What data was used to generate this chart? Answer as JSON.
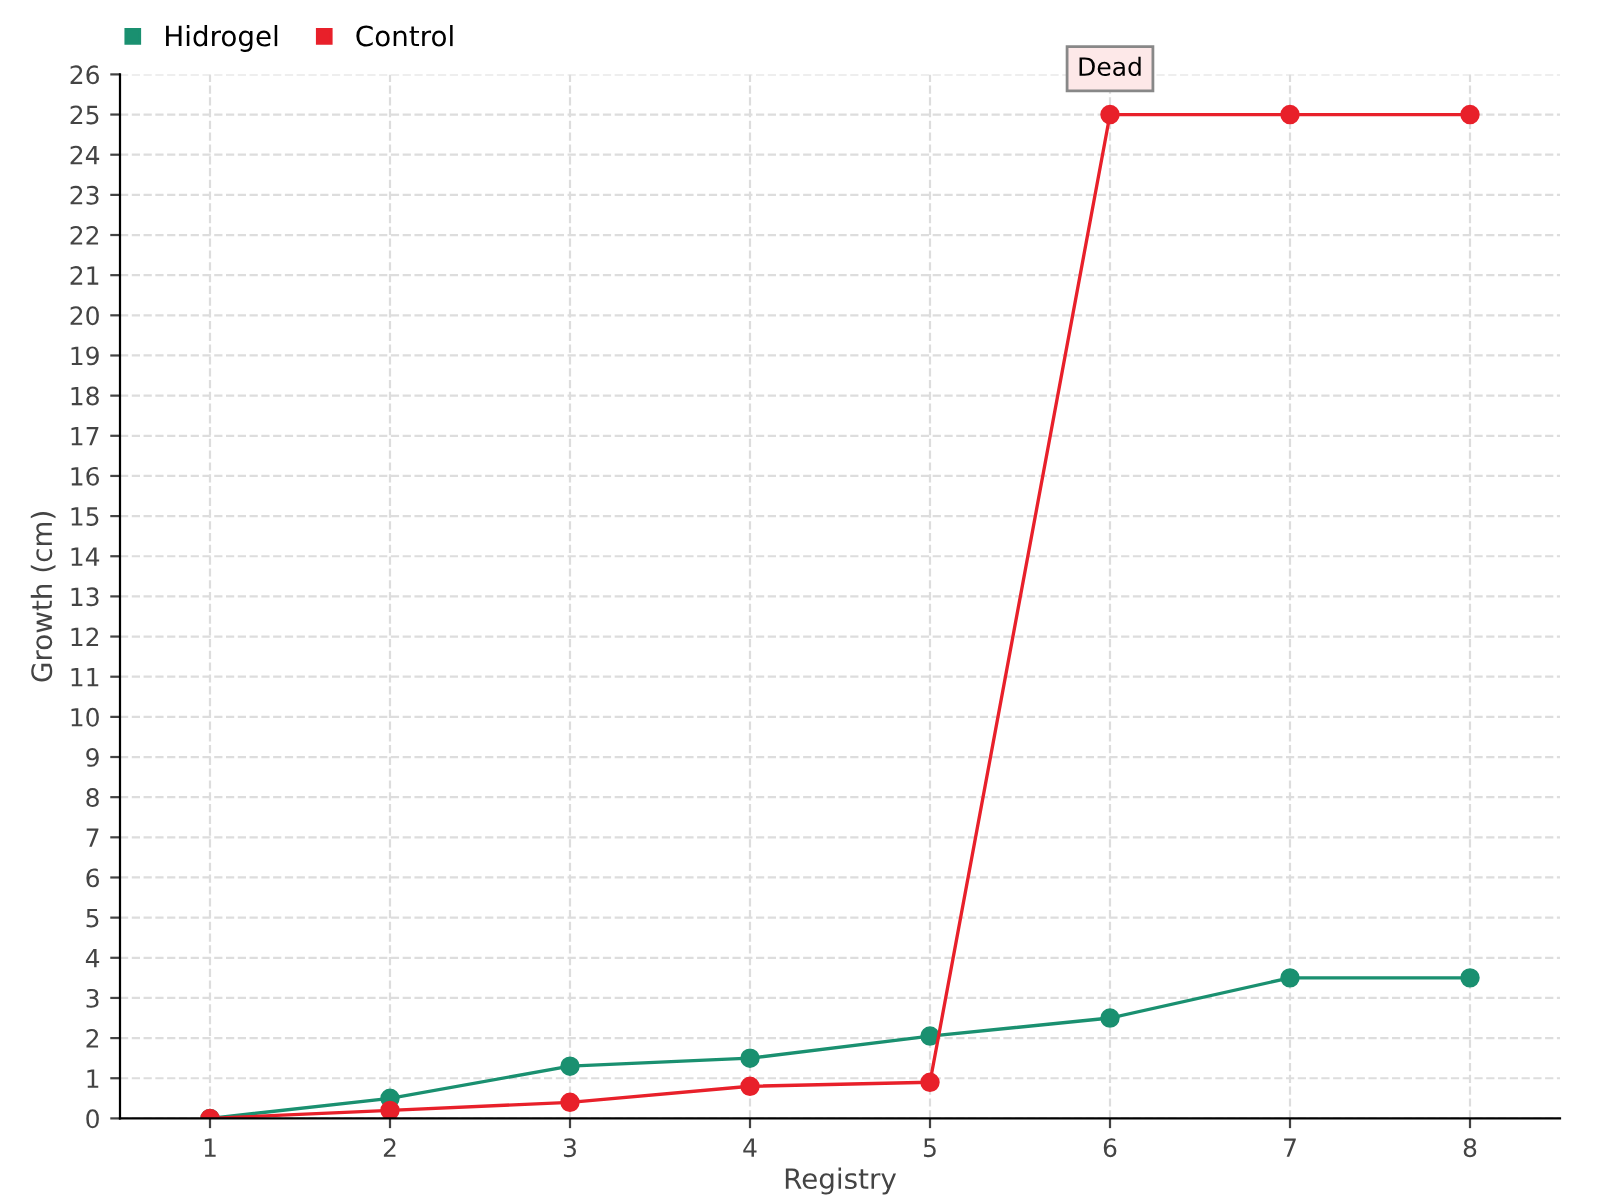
{
  "chart_data": {
    "type": "line",
    "xlabel": "Registry",
    "ylabel": "Growth (cm)",
    "categories": [
      "1",
      "2",
      "3",
      "4",
      "5",
      "6",
      "7",
      "8"
    ],
    "series": [
      {
        "name": "Hidrogel",
        "color": "#1a9070",
        "values": [
          0,
          0.5,
          1.3,
          1.5,
          2.05,
          2.5,
          3.5,
          3.5
        ]
      },
      {
        "name": "Control",
        "color": "#e8202a",
        "values": [
          0,
          0.2,
          0.4,
          0.8,
          0.9,
          25,
          25,
          25
        ]
      }
    ],
    "annotations": [
      {
        "text": "Dead",
        "x": "6",
        "y": 25
      }
    ],
    "ylim": [
      0,
      26
    ],
    "yticks": [
      0,
      1,
      2,
      3,
      4,
      5,
      6,
      7,
      8,
      9,
      10,
      11,
      12,
      13,
      14,
      15,
      16,
      17,
      18,
      19,
      20,
      21,
      22,
      23,
      24,
      25,
      26
    ],
    "grid": true,
    "legend": "top left",
    "marker": "circle",
    "line_style": "solid"
  }
}
